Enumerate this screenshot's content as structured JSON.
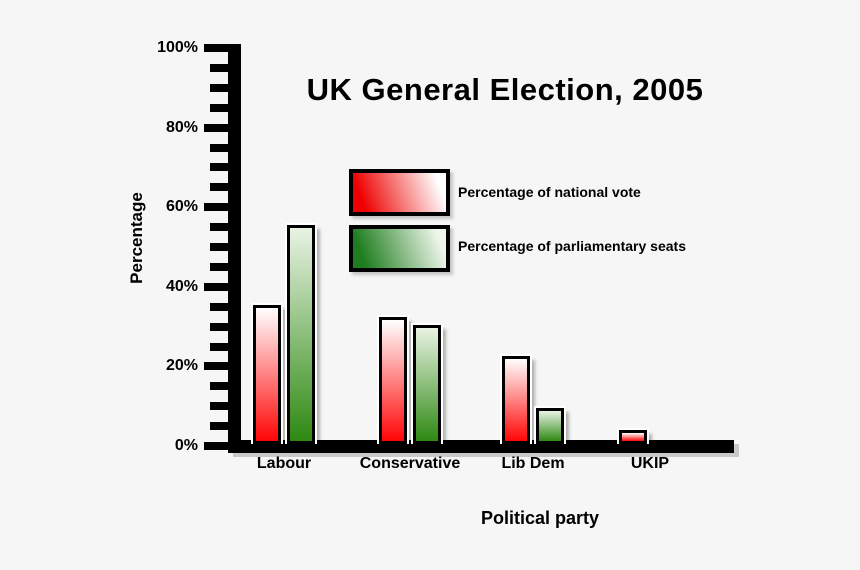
{
  "title": "UK General Election, 2005",
  "axes": {
    "y_label": "Percentage",
    "x_label": "Political party",
    "y_tick_labels": [
      "0%",
      "20%",
      "40%",
      "60%",
      "80%",
      "100%"
    ],
    "y_minor_tick_step_percent": 5
  },
  "legend": {
    "items": [
      {
        "label": "Percentage of national vote",
        "swatch": "red-gradient"
      },
      {
        "label": "Percentage of parliamentary seats",
        "swatch": "green-gradient"
      }
    ]
  },
  "colors": {
    "vote_bar": "#ff0000",
    "seats_bar": "#2e8912",
    "axis": "#000000",
    "background": "#f5f6f5",
    "text": "#000000"
  },
  "chart_data": {
    "type": "bar",
    "categories": [
      "Labour",
      "Conservative",
      "Lib Dem",
      "UKIP"
    ],
    "series": [
      {
        "name": "Percentage of national vote",
        "color": "#ff0000",
        "values": [
          35,
          32,
          22,
          3.5
        ]
      },
      {
        "name": "Percentage of parliamentary seats",
        "color": "#2e8912",
        "values": [
          55,
          30,
          9,
          0
        ]
      }
    ],
    "title": "UK General Election, 2005",
    "xlabel": "Political party",
    "ylabel": "Percentage",
    "ylim": [
      0,
      100
    ],
    "y_tick_interval_major": 20,
    "y_tick_interval_minor": 5,
    "grid": false,
    "legend_position": "inside-top-center"
  }
}
